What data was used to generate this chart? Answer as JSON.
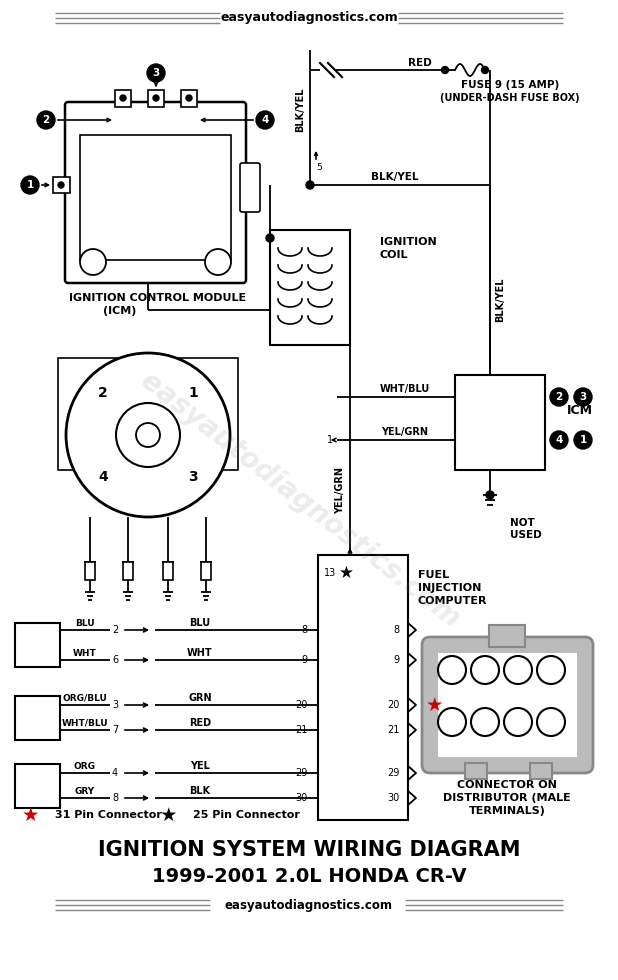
{
  "title_line1": "IGNITION SYSTEM WIRING DIAGRAM",
  "title_line2": "1999-2001 2.0L HONDA CR-V",
  "website": "easyautodiagnostics.com",
  "bg_color": "#ffffff",
  "text_color": "#000000",
  "red_color": "#cc0000",
  "gray_color": "#888888",
  "lt_gray": "#bbbbbb"
}
